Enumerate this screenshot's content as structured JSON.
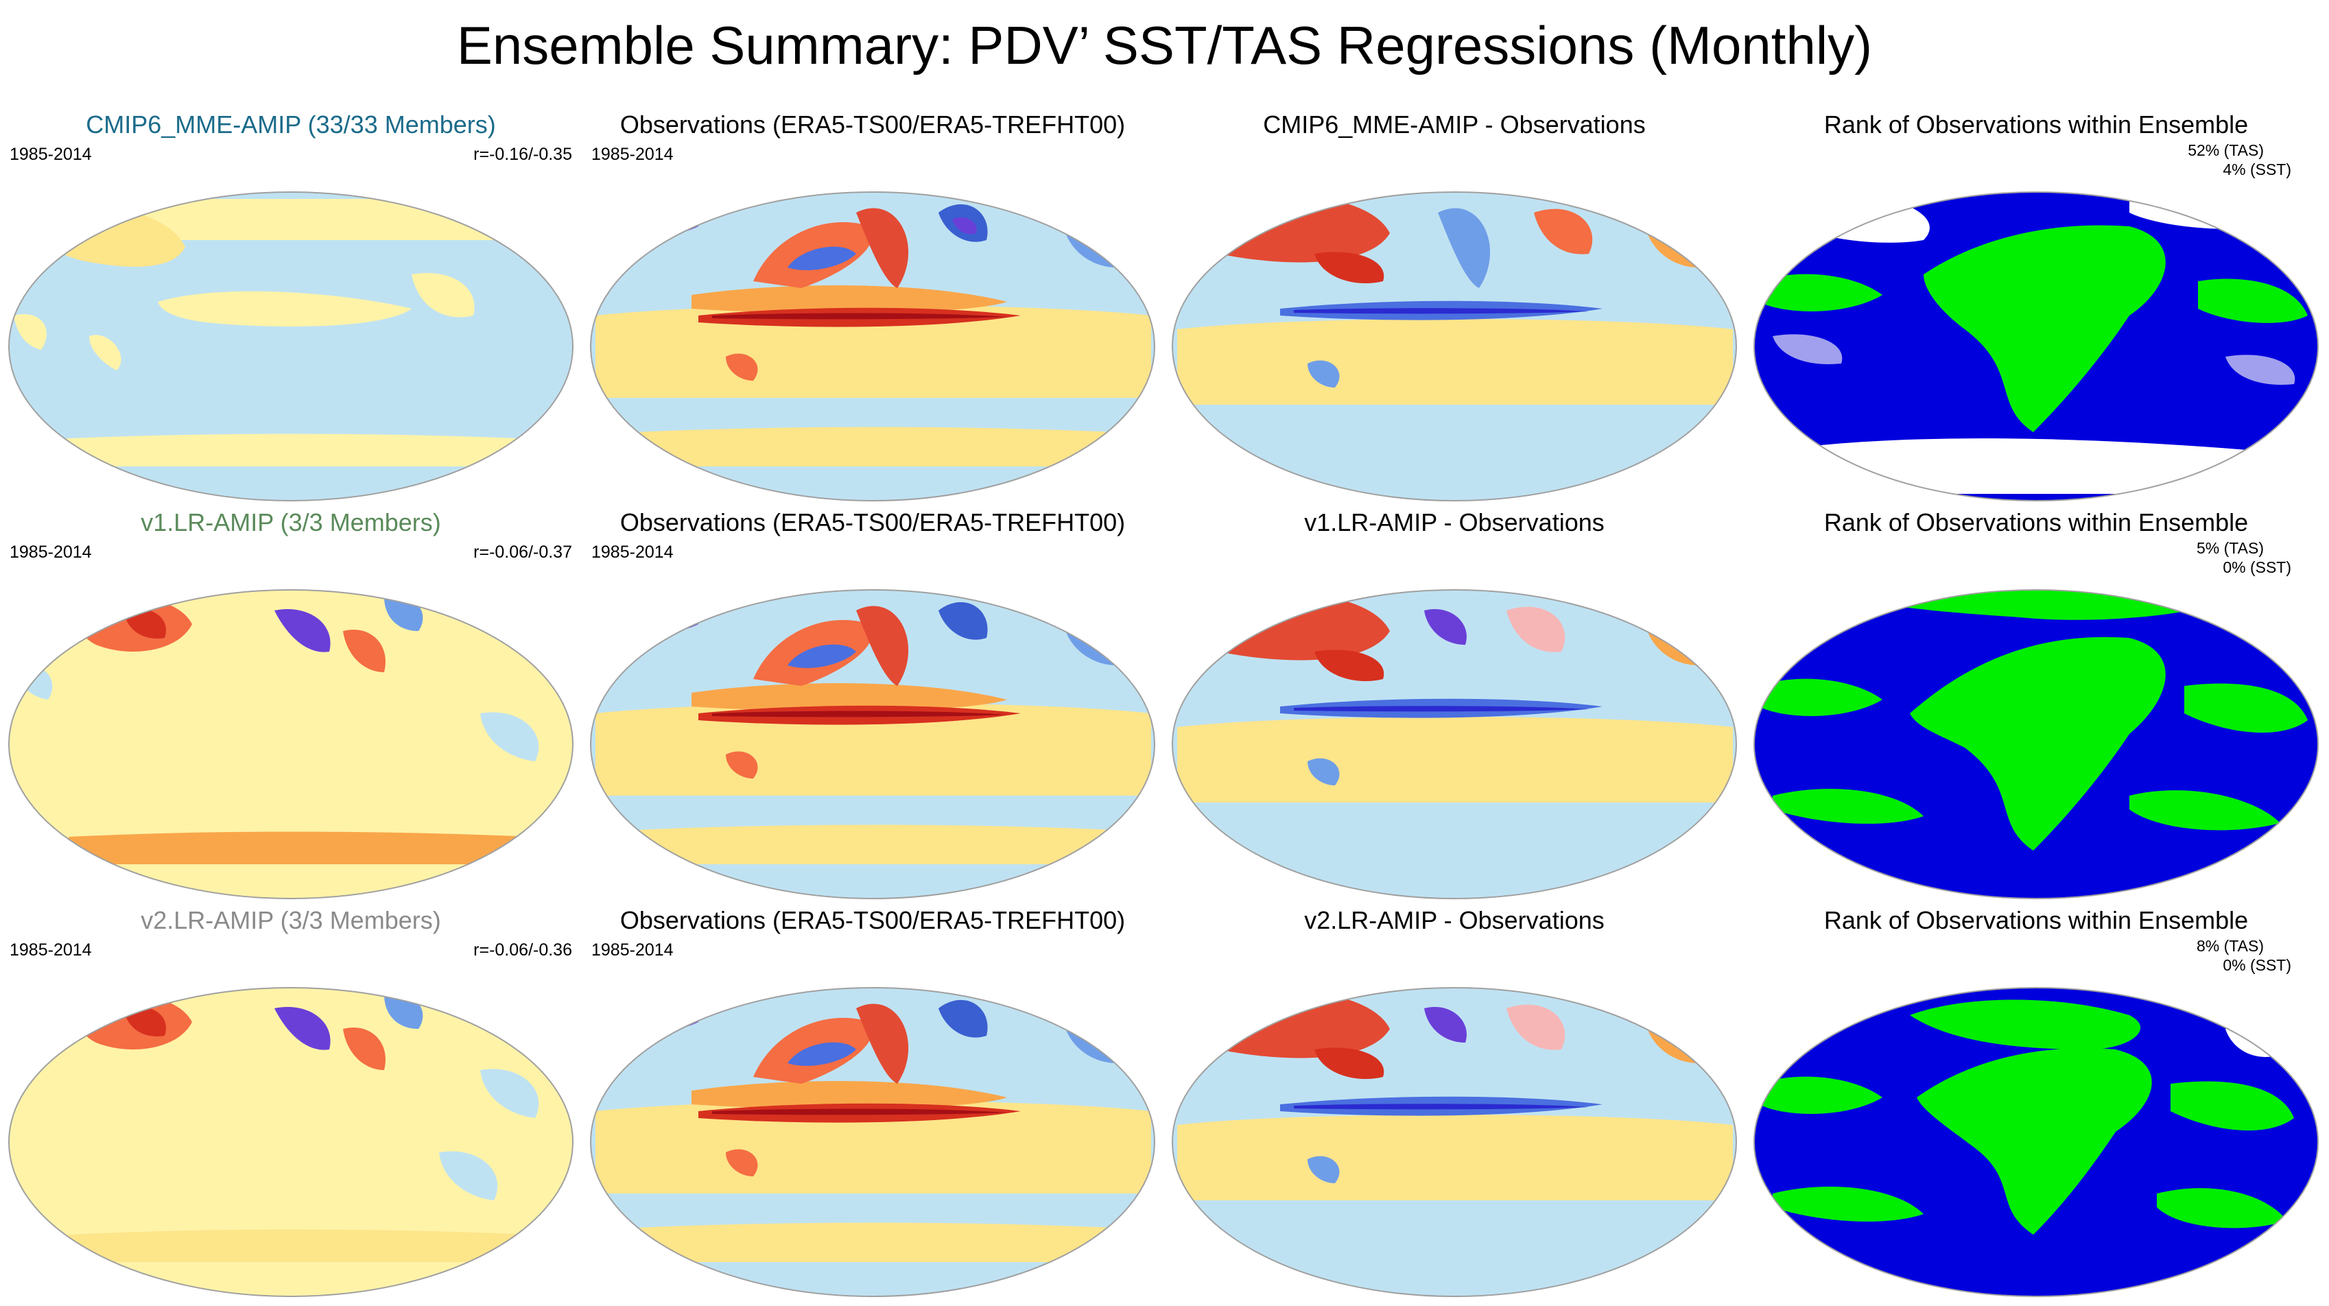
{
  "title": "Ensemble Summary: PDV’ SST/TAS Regressions (Monthly)",
  "colors": {
    "cmip6_title": "#1a6b8a",
    "v1_title": "#5a8a5a",
    "v2_title": "#8a8a8a",
    "rank_green": "#00ee00",
    "rank_blue": "#0000dd",
    "rank_lavender": "#a0a0ee"
  },
  "rows": [
    {
      "model_title": "CMIP6_MME-AMIP (33/33 Members)",
      "model_period": "1985-2014",
      "model_corr": "r=-0.16/-0.35",
      "obs_title": "Observations (ERA5-TS00/ERA5-TREFHT00)",
      "obs_period": "1985-2014",
      "diff_title": "CMIP6_MME-AMIP - Observations",
      "rank_title": "Rank of Observations within Ensemble",
      "rank_tas": "52% (TAS)",
      "rank_sst": "4% (SST)"
    },
    {
      "model_title": "v1.LR-AMIP (3/3 Members)",
      "model_period": "1985-2014",
      "model_corr": "r=-0.06/-0.37",
      "obs_title": "Observations (ERA5-TS00/ERA5-TREFHT00)",
      "obs_period": "1985-2014",
      "diff_title": "v1.LR-AMIP - Observations",
      "rank_title": "Rank of Observations within Ensemble",
      "rank_tas": "5% (TAS)",
      "rank_sst": "0% (SST)"
    },
    {
      "model_title": "v2.LR-AMIP (3/3 Members)",
      "model_period": "1985-2014",
      "model_corr": "r=-0.06/-0.36",
      "obs_title": "Observations (ERA5-TS00/ERA5-TREFHT00)",
      "obs_period": "1985-2014",
      "diff_title": "v2.LR-AMIP - Observations",
      "rank_title": "Rank of Observations within Ensemble",
      "rank_tas": "8% (TAS)",
      "rank_sst": "0% (SST)"
    }
  ]
}
